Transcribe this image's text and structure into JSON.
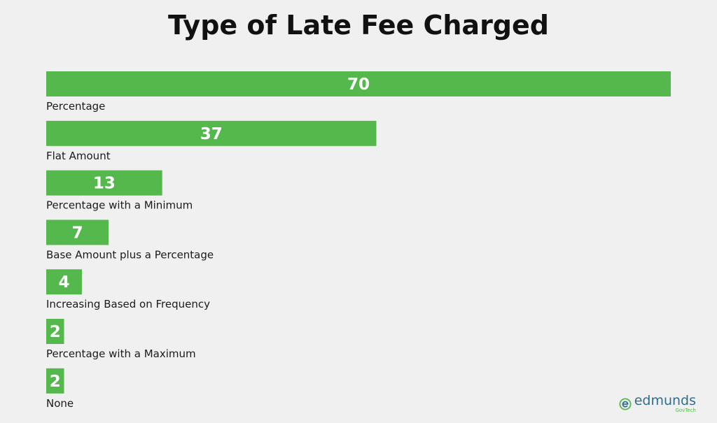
{
  "chart_data": {
    "type": "bar",
    "orientation": "horizontal",
    "title": "Type of Late Fee Charged",
    "categories": [
      "Percentage",
      "Flat Amount",
      "Percentage with a Minimum",
      "Base Amount plus a Percentage",
      "Increasing Based on Frequency",
      "Percentage with a Maximum",
      "None"
    ],
    "values": [
      70,
      37,
      13,
      7,
      4,
      2,
      2
    ],
    "value_labels": [
      "70",
      "37",
      "13",
      "7",
      "4",
      "2",
      "2"
    ],
    "bar_color": "#55b84c",
    "grid": false,
    "legend": "none"
  },
  "logo": {
    "name": "edmunds",
    "sub": "GovTech",
    "icon": "edmunds-e-icon",
    "name_color": "#2e6e8e",
    "accent_color": "#55b84c"
  }
}
